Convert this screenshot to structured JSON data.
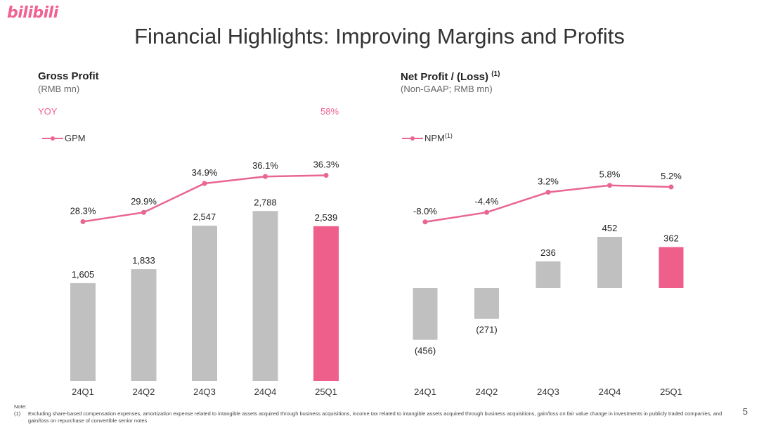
{
  "brand": {
    "logo_text": "bilibili"
  },
  "title": "Financial Highlights: Improving Margins and Profits",
  "page_number": "5",
  "colors": {
    "accent": "#ee5f8c",
    "bar_gray": "#c0c0c0",
    "line_pink": "#e8668f"
  },
  "left_panel": {
    "title": "Gross Profit",
    "subtitle": "(RMB mn)",
    "yoy_label": "YOY",
    "yoy_value": "58%",
    "legend": "GPM"
  },
  "right_panel": {
    "title": "Net Profit / (Loss)",
    "title_sup": "(1)",
    "subtitle": "(Non-GAAP; RMB mn)",
    "legend": "NPM",
    "legend_sup": "(1)"
  },
  "chart_data": [
    {
      "type": "bar",
      "categories": [
        "24Q1",
        "24Q2",
        "24Q3",
        "24Q4",
        "25Q1"
      ],
      "values": [
        1605,
        1833,
        2547,
        2788,
        2539
      ],
      "value_labels": [
        "1,605",
        "1,833",
        "2,547",
        "2,788",
        "2,539"
      ],
      "highlight_index": 4,
      "line": {
        "name": "GPM",
        "values": [
          28.3,
          29.9,
          34.9,
          36.1,
          36.3
        ],
        "labels": [
          "28.3%",
          "29.9%",
          "34.9%",
          "36.1%",
          "36.3%"
        ]
      }
    },
    {
      "type": "bar",
      "categories": [
        "24Q1",
        "24Q2",
        "24Q3",
        "24Q4",
        "25Q1"
      ],
      "values": [
        -456,
        -271,
        236,
        452,
        362
      ],
      "value_labels": [
        "(456)",
        "(271)",
        "236",
        "452",
        "362"
      ],
      "highlight_index": 4,
      "line": {
        "name": "NPM",
        "values": [
          -8.0,
          -4.4,
          3.2,
          5.8,
          5.2
        ],
        "labels": [
          "-8.0%",
          "-4.4%",
          "3.2%",
          "5.8%",
          "5.2%"
        ]
      }
    }
  ],
  "notes": {
    "heading": "Note:",
    "items": [
      {
        "num": "(1)",
        "text": "Excluding share-based compensation expenses, amortization expense related to intangible assets acquired through business acquisitions, income tax related to intangible assets acquired through business acquisitions, gain/loss on fair value change in investments in publicly traded companies, and gain/loss on repurchase of convertible senior notes"
      }
    ]
  }
}
